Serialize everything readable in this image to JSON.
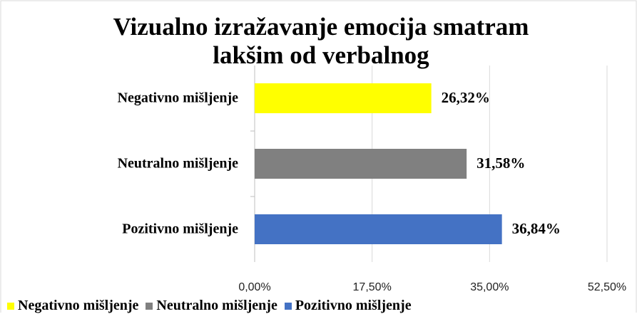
{
  "chart_data": {
    "type": "barh",
    "title": "Vizualno izražavanje emocija smatram lakšim od verbalnog",
    "categories": [
      "Negativno mišljenje",
      "Neutralno mišljenje",
      "Pozitivno mišljenje"
    ],
    "values": [
      26.32,
      31.58,
      36.84
    ],
    "value_labels": [
      "26,32%",
      "31,58%",
      "36,84%"
    ],
    "colors": [
      "#ffff00",
      "#808080",
      "#4472c4"
    ],
    "xlim": [
      0,
      52.5
    ],
    "xticks": [
      {
        "value": 0,
        "label": "0,00%"
      },
      {
        "value": 17.5,
        "label": "17,50%"
      },
      {
        "value": 35,
        "label": "35,00%"
      },
      {
        "value": 52.5,
        "label": "52,50%"
      }
    ],
    "grid": true,
    "legend": "bottom"
  }
}
